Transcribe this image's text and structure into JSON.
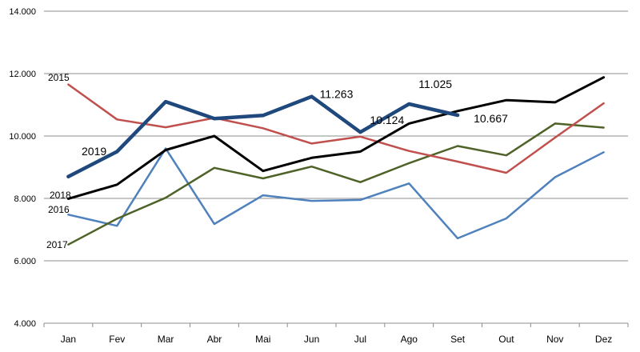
{
  "chart_data": {
    "type": "line",
    "categories": [
      "Jan",
      "Fev",
      "Mar",
      "Abr",
      "Mai",
      "Jun",
      "Jul",
      "Ago",
      "Set",
      "Out",
      "Nov",
      "Dez"
    ],
    "ylim": [
      4000,
      14000
    ],
    "yticks": [
      {
        "value": 4000,
        "label": "4.000"
      },
      {
        "value": 6000,
        "label": "6.000"
      },
      {
        "value": 8000,
        "label": "8.000"
      },
      {
        "value": 10000,
        "label": "10.000"
      },
      {
        "value": 12000,
        "label": "12.000"
      },
      {
        "value": 14000,
        "label": "14.000"
      }
    ],
    "grid": "horizontal",
    "legend": "none (series labelled inline)",
    "series": [
      {
        "name": "2016",
        "color": "#4f81bd",
        "values": [
          7480,
          7120,
          9600,
          7180,
          8100,
          7920,
          7950,
          8480,
          6720,
          7360,
          8680,
          9480
        ]
      },
      {
        "name": "2017",
        "color": "#4f6228",
        "values": [
          6520,
          7350,
          8020,
          8980,
          8640,
          9020,
          8520,
          9130,
          9680,
          9380,
          10400,
          10270
        ]
      },
      {
        "name": "2015",
        "color": "#c0504d",
        "values": [
          11650,
          10530,
          10280,
          10580,
          10250,
          9760,
          9980,
          9520,
          9180,
          8820,
          9950,
          11050
        ]
      },
      {
        "name": "2018",
        "color": "#000000",
        "values": [
          7990,
          8440,
          9550,
          10000,
          8880,
          9300,
          9500,
          10400,
          10800,
          11150,
          11080,
          11880
        ]
      },
      {
        "name": "2019",
        "color": "#1f497d",
        "values": [
          8700,
          9500,
          11100,
          10560,
          10660,
          11263,
          10124,
          11025,
          10667,
          null,
          null,
          null
        ]
      }
    ],
    "annotations": [
      {
        "text": "11.263",
        "series": "2019",
        "category": "Jun"
      },
      {
        "text": "10.124",
        "series": "2019",
        "category": "Jul"
      },
      {
        "text": "11.025",
        "series": "2019",
        "category": "Ago"
      },
      {
        "text": "10.667",
        "series": "2019",
        "category": "Set"
      }
    ]
  }
}
